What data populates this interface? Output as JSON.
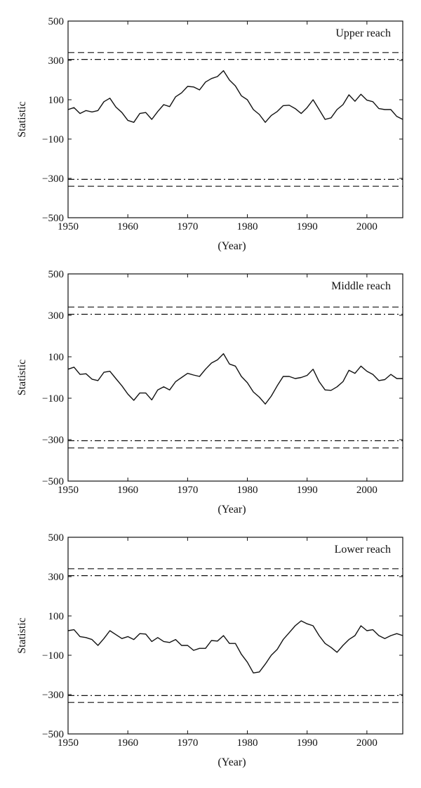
{
  "chart_data": [
    {
      "type": "line",
      "title": "Upper reach",
      "xlabel": "(Year)",
      "ylabel": "Statistic",
      "xlim": [
        1950,
        2006
      ],
      "ylim": [
        -500,
        500
      ],
      "xticks": [
        "1950",
        "1960",
        "1970",
        "1980",
        "1990",
        "2000"
      ],
      "yticks": [
        "500",
        "300",
        "100",
        "−100",
        "−300",
        "−500"
      ],
      "thresholds": {
        "dashed": [
          340,
          -340
        ],
        "dashdot": [
          305,
          -305
        ]
      },
      "series": [
        {
          "x": [
            1950,
            1951,
            1952,
            1953,
            1954,
            1955,
            1956,
            1957,
            1958,
            1959,
            1960,
            1961,
            1962,
            1963,
            1964,
            1965,
            1966,
            1967,
            1968,
            1969,
            1970,
            1971,
            1972,
            1973,
            1974,
            1975,
            1976,
            1977,
            1978,
            1979,
            1980,
            1981,
            1982,
            1983,
            1984,
            1985,
            1986,
            1987,
            1988,
            1989,
            1990,
            1991,
            1992,
            1993,
            1994,
            1995,
            1996,
            1997,
            1998,
            1999,
            2000,
            2001,
            2002,
            2003,
            2004,
            2005,
            2006
          ],
          "values": [
            50,
            60,
            30,
            45,
            38,
            45,
            90,
            108,
            63,
            35,
            -5,
            -15,
            30,
            35,
            0,
            40,
            75,
            65,
            115,
            135,
            168,
            165,
            150,
            190,
            208,
            218,
            248,
            200,
            170,
            120,
            100,
            50,
            25,
            -15,
            20,
            40,
            70,
            72,
            55,
            30,
            60,
            100,
            50,
            0,
            8,
            50,
            75,
            125,
            92,
            128,
            98,
            90,
            55,
            50,
            50,
            15,
            0
          ]
        }
      ]
    },
    {
      "type": "line",
      "title": "Middle reach",
      "xlabel": "(Year)",
      "ylabel": "Statistic",
      "xlim": [
        1950,
        2006
      ],
      "ylim": [
        -500,
        500
      ],
      "xticks": [
        "1950",
        "1960",
        "1970",
        "1980",
        "1990",
        "2000"
      ],
      "yticks": [
        "500",
        "300",
        "100",
        "−100",
        "−300",
        "−500"
      ],
      "thresholds": {
        "dashed": [
          340,
          -340
        ],
        "dashdot": [
          305,
          -305
        ]
      },
      "series": [
        {
          "x": [
            1950,
            1951,
            1952,
            1953,
            1954,
            1955,
            1956,
            1957,
            1958,
            1959,
            1960,
            1961,
            1962,
            1963,
            1964,
            1965,
            1966,
            1967,
            1968,
            1969,
            1970,
            1971,
            1972,
            1973,
            1974,
            1975,
            1976,
            1977,
            1978,
            1979,
            1980,
            1981,
            1982,
            1983,
            1984,
            1985,
            1986,
            1987,
            1988,
            1989,
            1990,
            1991,
            1992,
            1993,
            1994,
            1995,
            1996,
            1997,
            1998,
            1999,
            2000,
            2001,
            2002,
            2003,
            2004,
            2005,
            2006
          ],
          "values": [
            40,
            50,
            15,
            18,
            -8,
            -15,
            25,
            30,
            -5,
            -40,
            -80,
            -110,
            -75,
            -75,
            -108,
            -60,
            -45,
            -60,
            -20,
            0,
            20,
            12,
            5,
            40,
            70,
            85,
            115,
            65,
            55,
            5,
            -25,
            -70,
            -95,
            -128,
            -90,
            -40,
            5,
            5,
            -5,
            0,
            10,
            40,
            -20,
            -60,
            -62,
            -45,
            -20,
            35,
            20,
            55,
            30,
            15,
            -15,
            -10,
            15,
            -5,
            -5
          ]
        }
      ]
    },
    {
      "type": "line",
      "title": "Lower reach",
      "xlabel": "(Year)",
      "ylabel": "Statistic",
      "xlim": [
        1950,
        2006
      ],
      "ylim": [
        -500,
        500
      ],
      "xticks": [
        "1950",
        "1960",
        "1970",
        "1980",
        "1990",
        "2000"
      ],
      "yticks": [
        "500",
        "300",
        "100",
        "−100",
        "−300",
        "−500"
      ],
      "thresholds": {
        "dashed": [
          340,
          -340
        ],
        "dashdot": [
          305,
          -305
        ]
      },
      "series": [
        {
          "x": [
            1950,
            1951,
            1952,
            1953,
            1954,
            1955,
            1956,
            1957,
            1958,
            1959,
            1960,
            1961,
            1962,
            1963,
            1964,
            1965,
            1966,
            1967,
            1968,
            1969,
            1970,
            1971,
            1972,
            1973,
            1974,
            1975,
            1976,
            1977,
            1978,
            1979,
            1980,
            1981,
            1982,
            1983,
            1984,
            1985,
            1986,
            1987,
            1988,
            1989,
            1990,
            1991,
            1992,
            1993,
            1994,
            1995,
            1996,
            1997,
            1998,
            1999,
            2000,
            2001,
            2002,
            2003,
            2004,
            2005,
            2006
          ],
          "values": [
            25,
            30,
            -5,
            -10,
            -20,
            -50,
            -15,
            25,
            5,
            -15,
            -5,
            -20,
            10,
            8,
            -30,
            -10,
            -30,
            -35,
            -20,
            -50,
            -50,
            -75,
            -65,
            -65,
            -25,
            -28,
            0,
            -40,
            -40,
            -95,
            -135,
            -190,
            -185,
            -145,
            -100,
            -70,
            -20,
            15,
            50,
            75,
            60,
            50,
            0,
            -40,
            -60,
            -85,
            -50,
            -20,
            0,
            50,
            25,
            30,
            0,
            -15,
            0,
            10,
            0
          ]
        }
      ]
    }
  ]
}
